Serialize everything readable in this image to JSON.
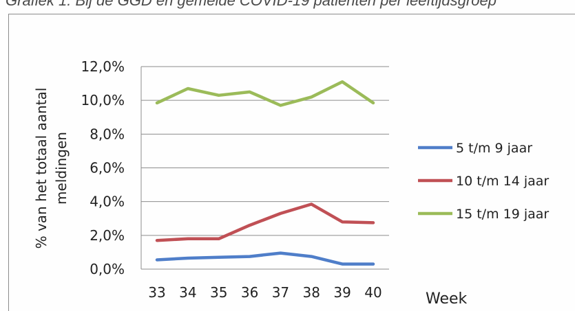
{
  "caption": "Grafiek 1: Bij de GGD en gemelde COVID-19 patienten per leeftijdsgroep",
  "chart_data": {
    "type": "line",
    "categories": [
      "33",
      "34",
      "35",
      "36",
      "37",
      "38",
      "39",
      "40"
    ],
    "ylabel_line1": "% van het totaal aantal",
    "ylabel_line2": "meldingen",
    "xlabel": "Week",
    "ylim": [
      0,
      12
    ],
    "yticks": [
      0,
      2,
      4,
      6,
      8,
      10,
      12
    ],
    "ytick_labels": [
      "0,0%",
      "2,0%",
      "4,0%",
      "6,0%",
      "8,0%",
      "10,0%",
      "12,0%"
    ],
    "grid": true,
    "legend_position": "right",
    "series": [
      {
        "name": "5 t/m 9 jaar",
        "color": "#4f7ec9",
        "values": [
          0.55,
          0.65,
          0.7,
          0.75,
          0.95,
          0.75,
          0.3,
          0.3
        ]
      },
      {
        "name": "10 t/m 14 jaar",
        "color": "#c05055",
        "values": [
          1.7,
          1.8,
          1.8,
          2.6,
          3.3,
          3.85,
          2.8,
          2.75
        ]
      },
      {
        "name": "15 t/m 19 jaar",
        "color": "#9bbb59",
        "values": [
          9.85,
          10.7,
          10.3,
          10.5,
          9.7,
          10.2,
          11.1,
          9.85
        ]
      }
    ]
  }
}
